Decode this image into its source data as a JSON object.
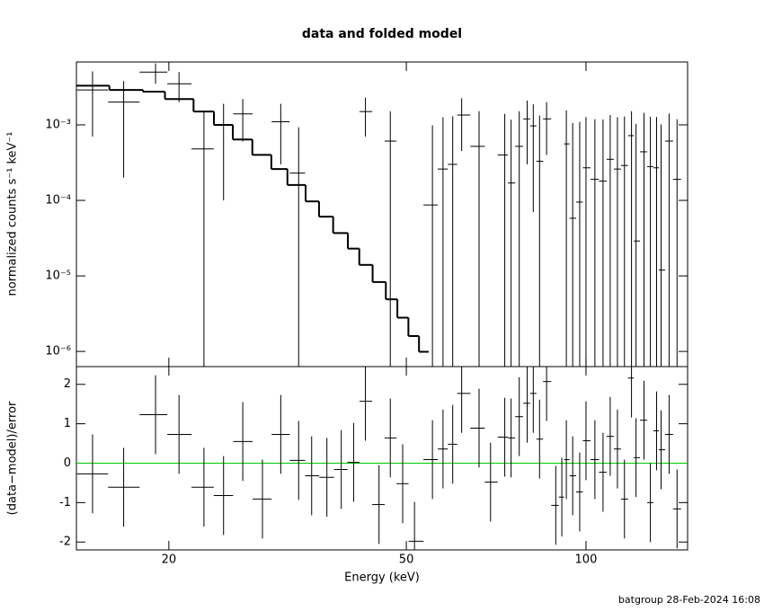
{
  "chart_data": [
    {
      "type": "errorbar",
      "title": "data and folded model",
      "ylabel": "normalized counts s⁻¹ keV⁻¹",
      "xscale": "log",
      "yscale": "log",
      "xlim": [
        14,
        148
      ],
      "ylim": [
        6.3e-07,
        0.0068
      ],
      "yticks": [
        {
          "value": 0.001,
          "label": "10⁻³"
        },
        {
          "value": 0.0001,
          "label": "10⁻⁴"
        },
        {
          "value": 1e-05,
          "label": "10⁻⁵"
        },
        {
          "value": 1e-06,
          "label": "10⁻⁶"
        }
      ],
      "color": "#000000",
      "x": [
        14.9,
        16.8,
        19.0,
        20.8,
        22.9,
        24.7,
        26.6,
        28.7,
        30.8,
        33.0,
        34.7,
        36.8,
        38.9,
        40.8,
        42.7,
        45.0,
        47.0,
        49.3,
        51.6,
        55.3,
        57.6,
        59.8,
        61.9,
        66.2,
        69.2,
        73.1,
        74.9,
        77.3,
        79.7,
        81.6,
        83.6,
        85.9,
        89.0,
        91.1,
        92.7,
        95.0,
        97.6,
        100.0,
        103.5,
        106.8,
        109.8,
        112.9,
        116.0,
        119.2,
        121.3,
        125.1,
        128.2,
        131.3,
        133.6,
        137.8,
        142.1
      ],
      "values": [
        0.0029,
        0.002,
        0.005,
        0.0035,
        0.00048,
        0.001,
        0.0014,
        null,
        0.0011,
        0.00023,
        null,
        null,
        null,
        null,
        0.0015,
        null,
        0.00061,
        null,
        null,
        8.7e-05,
        0.00026,
        0.0003,
        0.00135,
        0.00052,
        null,
        0.0004,
        0.00017,
        0.00052,
        0.0012,
        0.00097,
        0.00033,
        0.0012,
        null,
        null,
        0.00056,
        5.8e-05,
        9.5e-05,
        0.00027,
        0.00019,
        0.00018,
        0.00035,
        0.00026,
        0.00029,
        0.00072,
        2.9e-05,
        0.00044,
        0.00028,
        0.00027,
        1.2e-05,
        0.00061,
        0.00019
      ],
      "errors": [
        0.0022,
        0.0018,
        0.0015,
        0.0015,
        0.001,
        0.0009,
        0.0008,
        null,
        0.0008,
        0.0007,
        null,
        null,
        null,
        null,
        0.0008,
        null,
        0.0009,
        null,
        null,
        0.0009,
        0.001,
        0.001,
        0.0009,
        0.001,
        null,
        0.001,
        0.001,
        0.001,
        0.0009,
        0.0009,
        0.001,
        0.0008,
        null,
        null,
        0.001,
        0.001,
        0.001,
        0.001,
        0.001,
        0.001,
        0.001,
        0.001,
        0.001,
        0.0008,
        0.001,
        0.001,
        0.001,
        0.001,
        0.001,
        0.0008,
        0.001
      ],
      "model": {
        "color": "#000000",
        "bins": [
          13.9,
          15.9,
          18.1,
          19.7,
          22.0,
          23.8,
          25.6,
          27.6,
          29.7,
          31.6,
          33.9,
          35.7,
          37.7,
          39.9,
          41.7,
          43.9,
          46.2,
          48.3,
          50.4,
          52.5,
          54.5
        ],
        "values": [
          0.0033,
          0.0029,
          0.00275,
          0.0022,
          0.0015,
          0.001,
          0.00064,
          0.0004,
          0.00026,
          0.00016,
          9.7e-05,
          6.1e-05,
          3.7e-05,
          2.3e-05,
          1.4e-05,
          8.3e-06,
          4.9e-06,
          2.8e-06,
          1.6e-06,
          9.9e-07
        ]
      }
    },
    {
      "type": "errorbar",
      "xlabel": "Energy (keV)",
      "ylabel": "(data−model)/error",
      "xscale": "log",
      "xlim": [
        14,
        148
      ],
      "ylim": [
        -2.2,
        2.45
      ],
      "xticks": [
        20,
        50,
        100
      ],
      "yticks": [
        -2,
        -1,
        0,
        1,
        2
      ],
      "color": "#000000",
      "reference_line": {
        "value": 0,
        "color": "#00cc00"
      },
      "x": [
        14.9,
        16.8,
        19.0,
        20.8,
        22.9,
        24.7,
        26.6,
        28.7,
        30.8,
        33.0,
        34.7,
        36.8,
        38.9,
        40.8,
        42.7,
        45.0,
        47.0,
        49.3,
        51.6,
        55.3,
        57.6,
        59.8,
        61.9,
        66.2,
        69.2,
        73.1,
        74.9,
        77.3,
        79.7,
        81.6,
        83.6,
        85.9,
        89.0,
        91.1,
        92.7,
        95.0,
        97.6,
        100.0,
        103.5,
        106.8,
        109.8,
        112.9,
        116.0,
        119.2,
        121.3,
        125.1,
        128.2,
        131.3,
        133.6,
        137.8,
        142.1
      ],
      "values": [
        -0.27,
        -0.61,
        1.23,
        0.73,
        -0.61,
        -0.82,
        0.55,
        -0.91,
        0.73,
        0.07,
        -0.32,
        -0.36,
        -0.16,
        0.02,
        1.57,
        -1.05,
        0.64,
        -0.52,
        -1.98,
        0.09,
        0.36,
        0.48,
        1.77,
        0.89,
        -0.48,
        0.66,
        0.64,
        1.18,
        1.52,
        1.77,
        0.61,
        2.07,
        -1.07,
        -0.86,
        0.09,
        -0.32,
        -0.73,
        0.57,
        0.09,
        -0.23,
        0.68,
        0.36,
        -0.91,
        2.16,
        0.14,
        1.09,
        -1.0,
        0.82,
        0.34,
        0.73,
        -1.16
      ],
      "errors": [
        1,
        1,
        1,
        1,
        1,
        1,
        1,
        1,
        1,
        1,
        1,
        1,
        1,
        1,
        1,
        1,
        1,
        1,
        1,
        1,
        1,
        1,
        1,
        1,
        1,
        1,
        1,
        1,
        1,
        1,
        1,
        1,
        1,
        1,
        1,
        1,
        1,
        1,
        1,
        1,
        1,
        1,
        1,
        1,
        1,
        1,
        1,
        1,
        1,
        1,
        1
      ]
    }
  ],
  "footer": "batgroup 28-Feb-2024 16:08"
}
